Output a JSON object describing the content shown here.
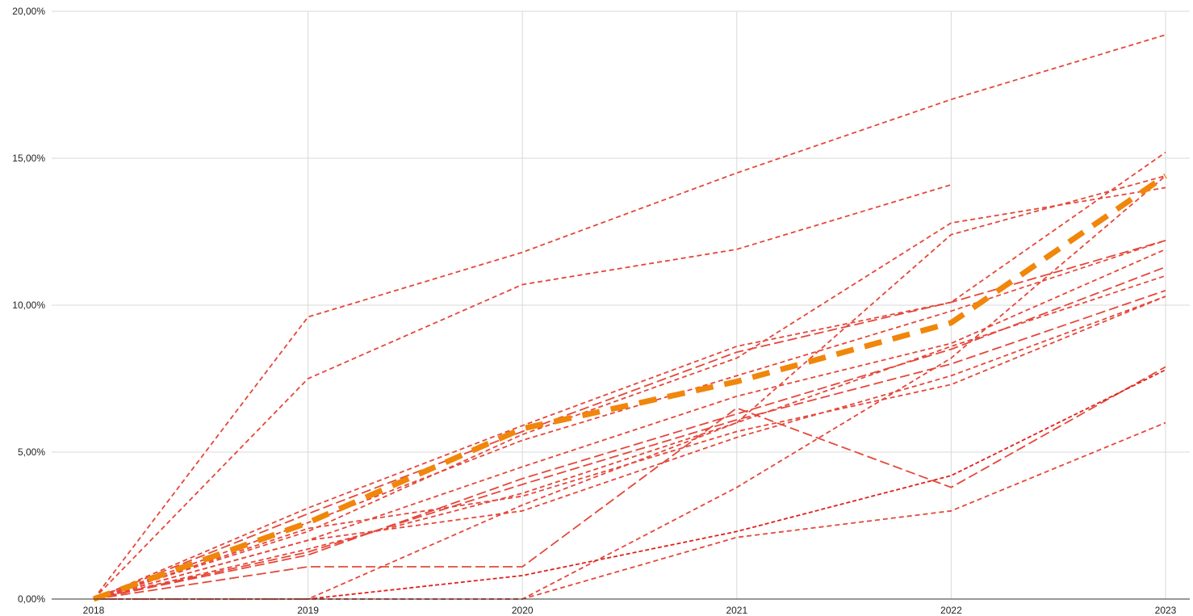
{
  "chart_data": {
    "type": "line",
    "title": "",
    "xlabel": "",
    "ylabel": "",
    "x": [
      "2018",
      "2019",
      "2020",
      "2021",
      "2022",
      "2023"
    ],
    "ylim": [
      0,
      20
    ],
    "yticks": [
      0,
      5,
      10,
      15,
      20
    ],
    "ytick_labels": [
      "0,00%",
      "5,00%",
      "10,00%",
      "15,00%",
      "20,00%"
    ],
    "grid": true,
    "legend": "none",
    "colors": {
      "series": "#e5473a",
      "series_dark": "#e0201b",
      "highlight": "#f0860a",
      "grid": "#d9d9d9",
      "axis": "#333333"
    },
    "series": [
      {
        "values": [
          0,
          9.6,
          11.8,
          14.5,
          17.0,
          19.2
        ],
        "style": "short-dash"
      },
      {
        "values": [
          0,
          7.5,
          10.7,
          11.9,
          14.1,
          null
        ],
        "style": "short-dash"
      },
      {
        "values": [
          0,
          3.1,
          5.9,
          8.6,
          10.1,
          15.2
        ],
        "style": "short-dash"
      },
      {
        "values": [
          0,
          0,
          0,
          3.8,
          8.2,
          14.4
        ],
        "style": "short-dash"
      },
      {
        "values": [
          0,
          2.3,
          5.6,
          8.2,
          12.8,
          14.0
        ],
        "style": "short-dash"
      },
      {
        "values": [
          0,
          0,
          3.2,
          6.0,
          12.4,
          14.4
        ],
        "style": "short-dash"
      },
      {
        "values": [
          0,
          2.9,
          5.7,
          8.4,
          10.1,
          12.2
        ],
        "style": "long-dash"
      },
      {
        "values": [
          0,
          2.6,
          5.4,
          7.6,
          9.8,
          12.2
        ],
        "style": "short-dash"
      },
      {
        "values": [
          0,
          2.0,
          4.5,
          6.9,
          8.7,
          11.9
        ],
        "style": "short-dash"
      },
      {
        "values": [
          0,
          1.5,
          4.1,
          6.3,
          8.5,
          11.3
        ],
        "style": "long-dash"
      },
      {
        "values": [
          0,
          1.7,
          3.6,
          6.0,
          8.6,
          11.0
        ],
        "style": "short-dash"
      },
      {
        "values": [
          0,
          1.6,
          3.9,
          6.1,
          8.0,
          10.5
        ],
        "style": "long-dash"
      },
      {
        "values": [
          0,
          2.0,
          3.0,
          5.5,
          7.6,
          10.3
        ],
        "style": "short-dash"
      },
      {
        "values": [
          0,
          1.1,
          1.1,
          6.5,
          3.8,
          7.9
        ],
        "style": "long-dash"
      },
      {
        "values": [
          0,
          0,
          0.8,
          2.3,
          4.2,
          7.8
        ],
        "style": "short-dash",
        "dark": true
      },
      {
        "values": [
          0,
          2.4,
          3.5,
          5.7,
          7.3,
          10.3
        ],
        "style": "short-dash"
      },
      {
        "values": [
          0,
          0,
          0,
          2.1,
          3.0,
          6.0
        ],
        "style": "short-dash"
      },
      {
        "values": [
          0,
          2.6,
          5.8,
          7.4,
          9.4,
          14.4
        ],
        "style": "highlight",
        "highlight": true
      }
    ]
  }
}
